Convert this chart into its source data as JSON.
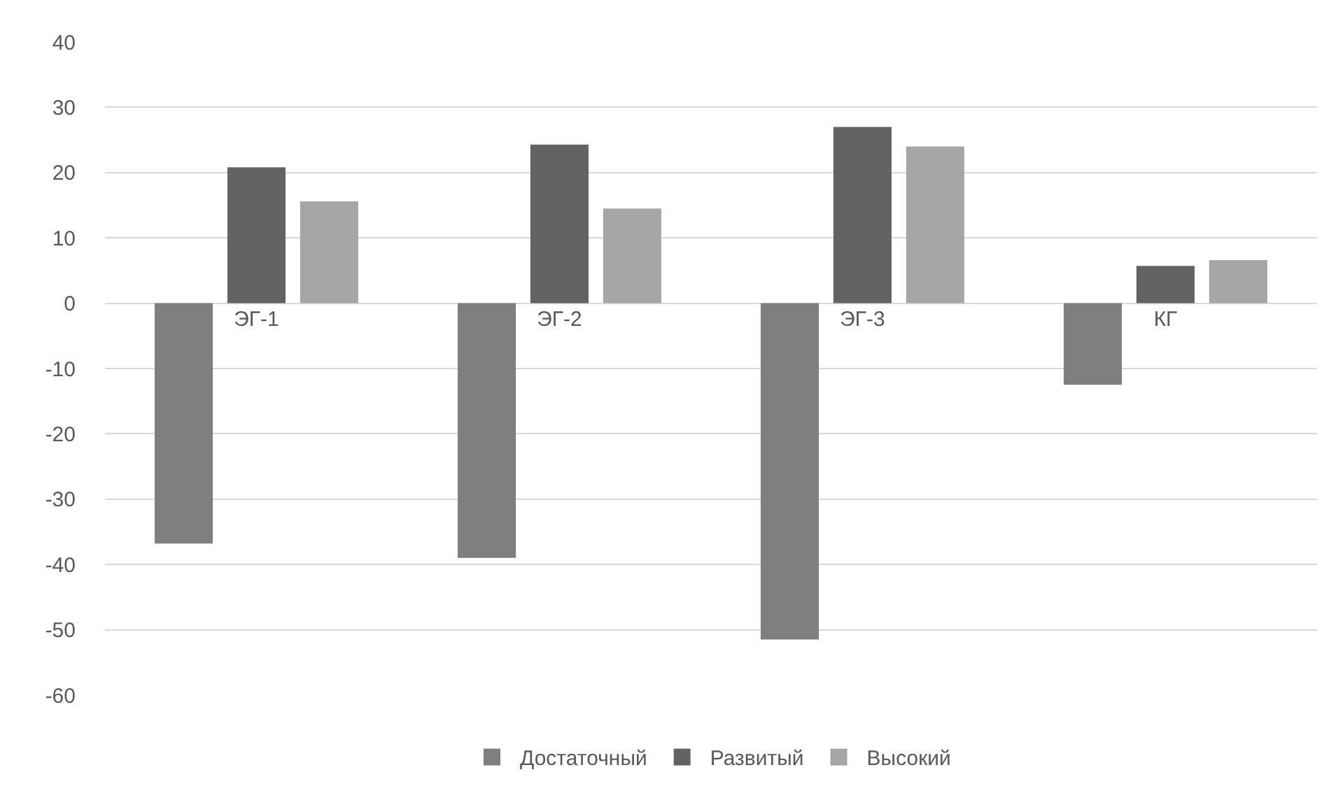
{
  "chart_data": {
    "type": "bar",
    "categories": [
      "ЭГ-1",
      "ЭГ-2",
      "ЭГ-3",
      "КГ"
    ],
    "series": [
      {
        "name": "Достаточный",
        "color": "#7f7f7f",
        "values": [
          -36.8,
          -39,
          -51.5,
          -12.5
        ]
      },
      {
        "name": "Развитый",
        "color": "#636363",
        "values": [
          20.8,
          24.3,
          27,
          5.7
        ]
      },
      {
        "name": "Высокий",
        "color": "#a6a6a6",
        "values": [
          15.6,
          14.5,
          24,
          6.6
        ]
      }
    ],
    "ylim": [
      -60,
      40
    ],
    "yticks": [
      -60,
      -50,
      -40,
      -30,
      -20,
      -10,
      0,
      10,
      20,
      30,
      40
    ],
    "grid": "y",
    "legend": "bottom"
  }
}
